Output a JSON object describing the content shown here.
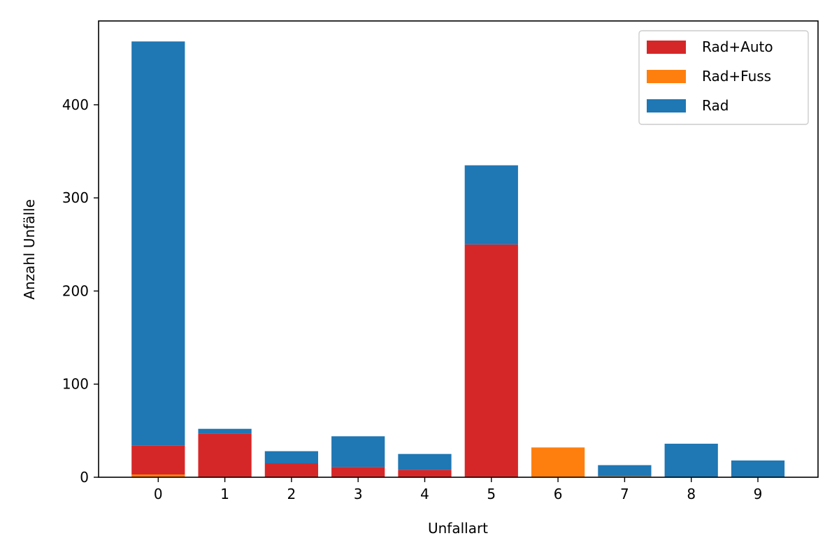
{
  "chart_data": {
    "type": "bar",
    "stacked": true,
    "categories": [
      "0",
      "1",
      "2",
      "3",
      "4",
      "5",
      "6",
      "7",
      "8",
      "9"
    ],
    "series": [
      {
        "name": "Rad+Fuss",
        "color": "#ff7f0e",
        "values": [
          3,
          0,
          0,
          0,
          0,
          0,
          32,
          1,
          0,
          0
        ]
      },
      {
        "name": "Rad+Auto",
        "color": "#d62728",
        "values": [
          31,
          47,
          15,
          11,
          8,
          250,
          0,
          0,
          0,
          0
        ]
      },
      {
        "name": "Rad",
        "color": "#1f77b4",
        "values": [
          434,
          5,
          13,
          33,
          17,
          85,
          0,
          12,
          36,
          18
        ]
      }
    ],
    "legend_order": [
      "Rad+Auto",
      "Rad+Fuss",
      "Rad"
    ],
    "legend_position": "top-right",
    "title": "",
    "xlabel": "Unfallart",
    "ylabel": "Anzahl Unfälle",
    "yticks": [
      0,
      100,
      200,
      300,
      400
    ],
    "ylim": [
      0,
      490
    ],
    "grid": false
  }
}
